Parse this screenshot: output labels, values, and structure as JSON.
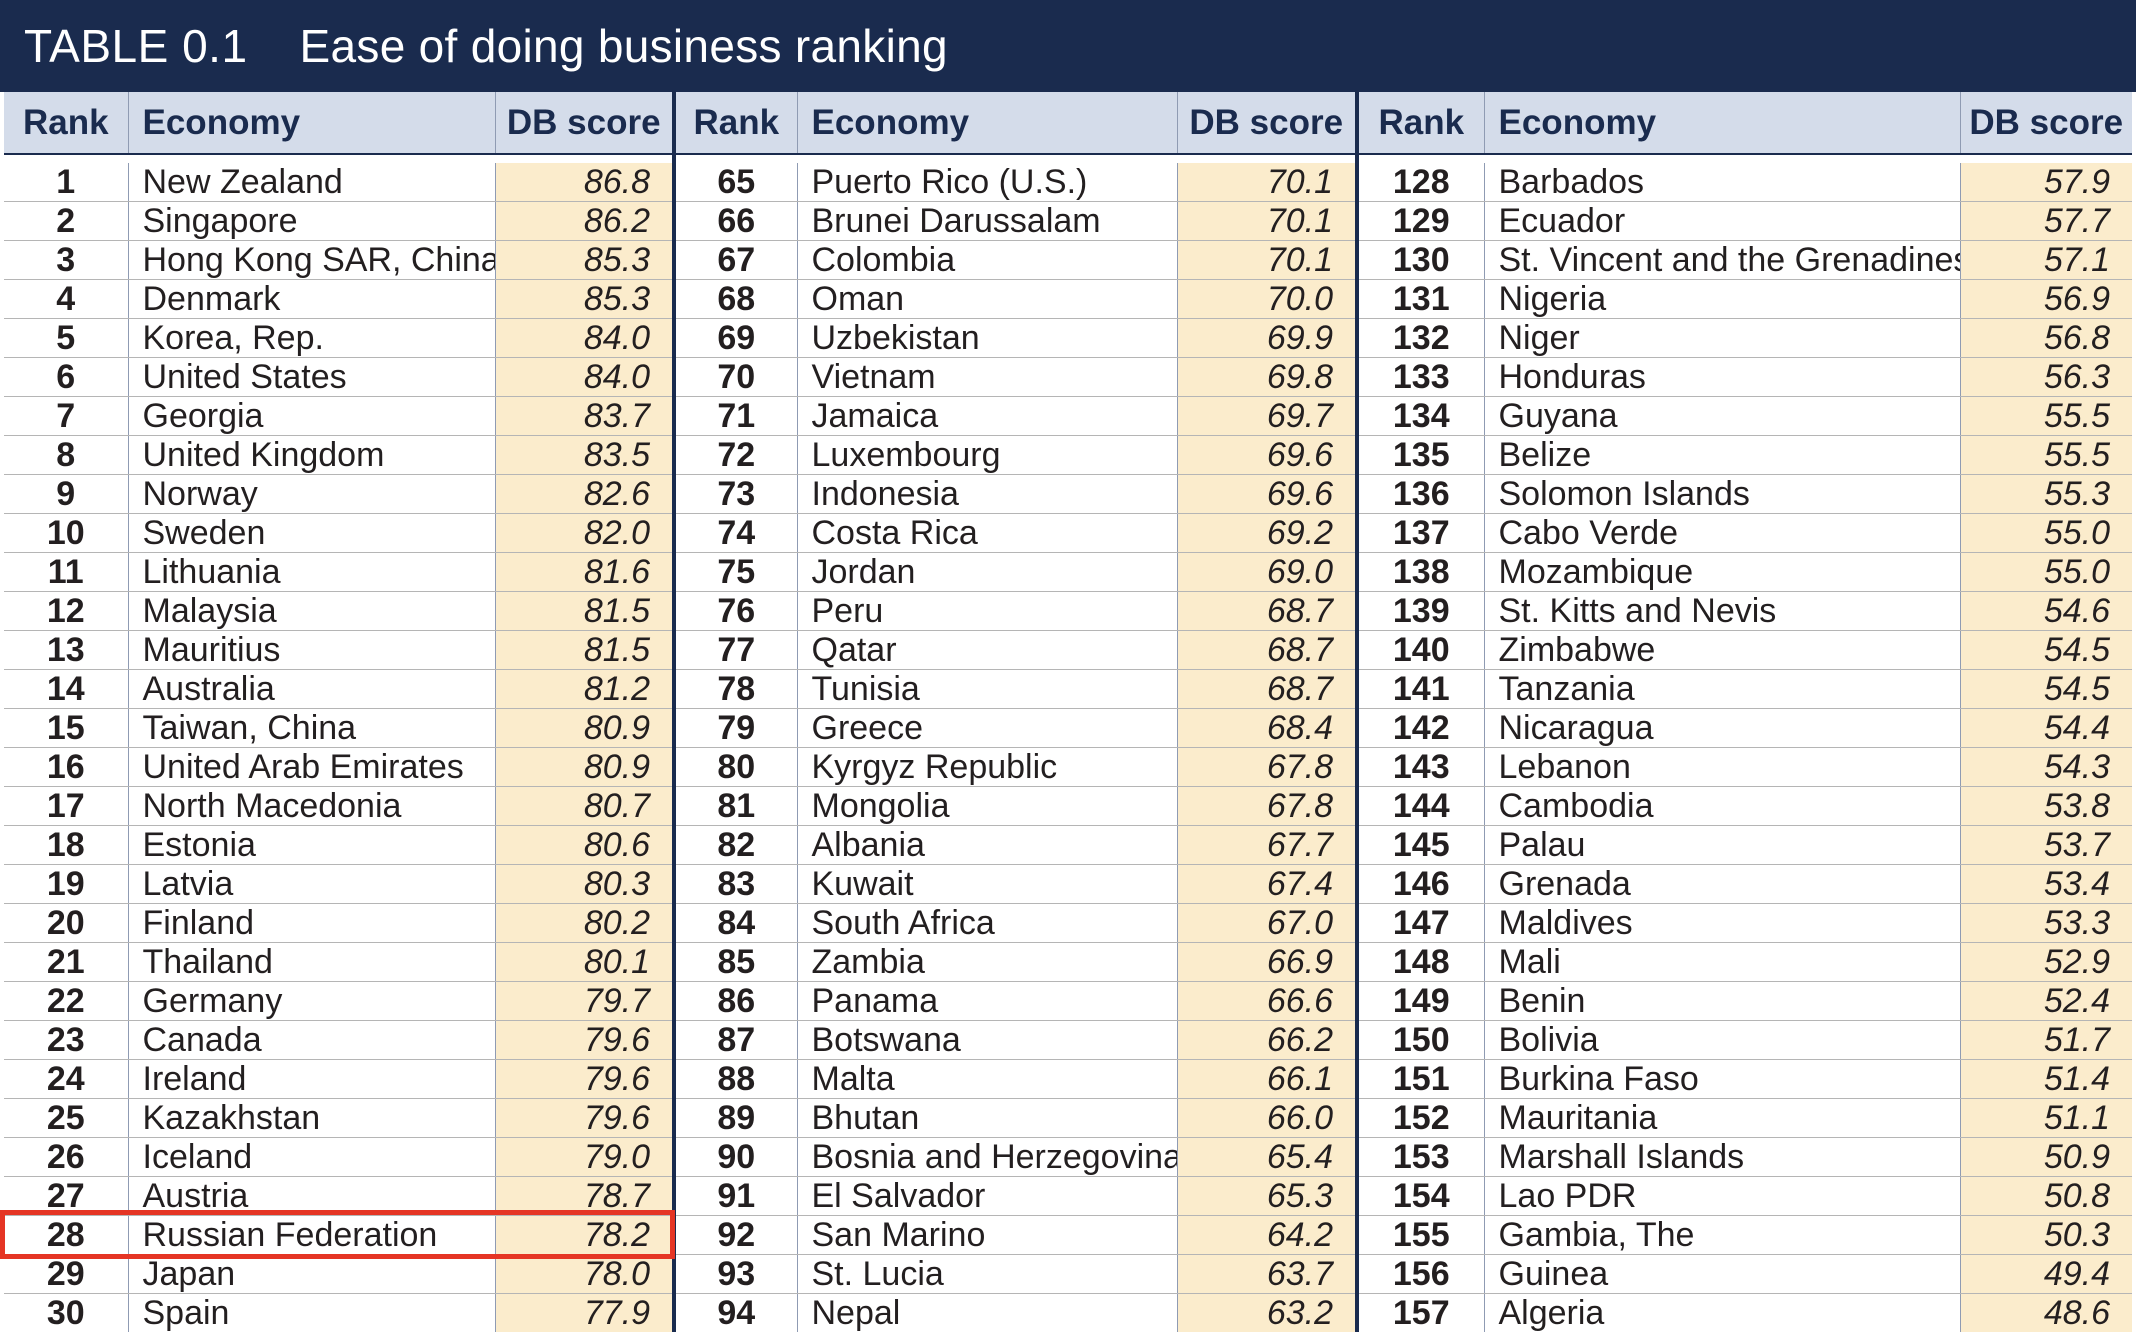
{
  "title": {
    "number": "TABLE 0.1",
    "text": "Ease of doing business ranking"
  },
  "columns": {
    "rank": "Rank",
    "economy": "Economy",
    "score": "DB score"
  },
  "highlight_color": "#e53524",
  "header_color": "#1a2b4e",
  "score_fill_color": "#fbeccc",
  "panels": [
    {
      "rows": [
        {
          "rank": "1",
          "economy": "New Zealand",
          "score": "86.8"
        },
        {
          "rank": "2",
          "economy": "Singapore",
          "score": "86.2"
        },
        {
          "rank": "3",
          "economy": "Hong Kong SAR, China",
          "score": "85.3"
        },
        {
          "rank": "4",
          "economy": "Denmark",
          "score": "85.3"
        },
        {
          "rank": "5",
          "economy": "Korea, Rep.",
          "score": "84.0"
        },
        {
          "rank": "6",
          "economy": "United States",
          "score": "84.0"
        },
        {
          "rank": "7",
          "economy": "Georgia",
          "score": "83.7"
        },
        {
          "rank": "8",
          "economy": "United Kingdom",
          "score": "83.5"
        },
        {
          "rank": "9",
          "economy": "Norway",
          "score": "82.6"
        },
        {
          "rank": "10",
          "economy": "Sweden",
          "score": "82.0"
        },
        {
          "rank": "11",
          "economy": "Lithuania",
          "score": "81.6"
        },
        {
          "rank": "12",
          "economy": "Malaysia",
          "score": "81.5"
        },
        {
          "rank": "13",
          "economy": "Mauritius",
          "score": "81.5"
        },
        {
          "rank": "14",
          "economy": "Australia",
          "score": "81.2"
        },
        {
          "rank": "15",
          "economy": "Taiwan, China",
          "score": "80.9"
        },
        {
          "rank": "16",
          "economy": "United Arab Emirates",
          "score": "80.9"
        },
        {
          "rank": "17",
          "economy": "North Macedonia",
          "score": "80.7"
        },
        {
          "rank": "18",
          "economy": "Estonia",
          "score": "80.6"
        },
        {
          "rank": "19",
          "economy": "Latvia",
          "score": "80.3"
        },
        {
          "rank": "20",
          "economy": "Finland",
          "score": "80.2"
        },
        {
          "rank": "21",
          "economy": "Thailand",
          "score": "80.1"
        },
        {
          "rank": "22",
          "economy": "Germany",
          "score": "79.7"
        },
        {
          "rank": "23",
          "economy": "Canada",
          "score": "79.6"
        },
        {
          "rank": "24",
          "economy": "Ireland",
          "score": "79.6"
        },
        {
          "rank": "25",
          "economy": "Kazakhstan",
          "score": "79.6"
        },
        {
          "rank": "26",
          "economy": "Iceland",
          "score": "79.0"
        },
        {
          "rank": "27",
          "economy": "Austria",
          "score": "78.7"
        },
        {
          "rank": "28",
          "economy": "Russian Federation",
          "score": "78.2",
          "highlighted": true
        },
        {
          "rank": "29",
          "economy": "Japan",
          "score": "78.0"
        },
        {
          "rank": "30",
          "economy": "Spain",
          "score": "77.9"
        }
      ]
    },
    {
      "rows": [
        {
          "rank": "65",
          "economy": "Puerto Rico (U.S.)",
          "score": "70.1"
        },
        {
          "rank": "66",
          "economy": "Brunei Darussalam",
          "score": "70.1"
        },
        {
          "rank": "67",
          "economy": "Colombia",
          "score": "70.1"
        },
        {
          "rank": "68",
          "economy": "Oman",
          "score": "70.0"
        },
        {
          "rank": "69",
          "economy": "Uzbekistan",
          "score": "69.9"
        },
        {
          "rank": "70",
          "economy": "Vietnam",
          "score": "69.8"
        },
        {
          "rank": "71",
          "economy": "Jamaica",
          "score": "69.7"
        },
        {
          "rank": "72",
          "economy": "Luxembourg",
          "score": "69.6"
        },
        {
          "rank": "73",
          "economy": "Indonesia",
          "score": "69.6"
        },
        {
          "rank": "74",
          "economy": "Costa Rica",
          "score": "69.2"
        },
        {
          "rank": "75",
          "economy": "Jordan",
          "score": "69.0"
        },
        {
          "rank": "76",
          "economy": "Peru",
          "score": "68.7"
        },
        {
          "rank": "77",
          "economy": "Qatar",
          "score": "68.7"
        },
        {
          "rank": "78",
          "economy": "Tunisia",
          "score": "68.7"
        },
        {
          "rank": "79",
          "economy": "Greece",
          "score": "68.4"
        },
        {
          "rank": "80",
          "economy": "Kyrgyz Republic",
          "score": "67.8"
        },
        {
          "rank": "81",
          "economy": "Mongolia",
          "score": "67.8"
        },
        {
          "rank": "82",
          "economy": "Albania",
          "score": "67.7"
        },
        {
          "rank": "83",
          "economy": "Kuwait",
          "score": "67.4"
        },
        {
          "rank": "84",
          "economy": "South Africa",
          "score": "67.0"
        },
        {
          "rank": "85",
          "economy": "Zambia",
          "score": "66.9"
        },
        {
          "rank": "86",
          "economy": "Panama",
          "score": "66.6"
        },
        {
          "rank": "87",
          "economy": "Botswana",
          "score": "66.2"
        },
        {
          "rank": "88",
          "economy": "Malta",
          "score": "66.1"
        },
        {
          "rank": "89",
          "economy": "Bhutan",
          "score": "66.0"
        },
        {
          "rank": "90",
          "economy": "Bosnia and Herzegovina",
          "score": "65.4"
        },
        {
          "rank": "91",
          "economy": "El Salvador",
          "score": "65.3"
        },
        {
          "rank": "92",
          "economy": "San Marino",
          "score": "64.2"
        },
        {
          "rank": "93",
          "economy": "St. Lucia",
          "score": "63.7"
        },
        {
          "rank": "94",
          "economy": "Nepal",
          "score": "63.2"
        }
      ]
    },
    {
      "rows": [
        {
          "rank": "128",
          "economy": "Barbados",
          "score": "57.9"
        },
        {
          "rank": "129",
          "economy": "Ecuador",
          "score": "57.7"
        },
        {
          "rank": "130",
          "economy": "St. Vincent and the Grenadines",
          "score": "57.1"
        },
        {
          "rank": "131",
          "economy": "Nigeria",
          "score": "56.9"
        },
        {
          "rank": "132",
          "economy": "Niger",
          "score": "56.8"
        },
        {
          "rank": "133",
          "economy": "Honduras",
          "score": "56.3"
        },
        {
          "rank": "134",
          "economy": "Guyana",
          "score": "55.5"
        },
        {
          "rank": "135",
          "economy": "Belize",
          "score": "55.5"
        },
        {
          "rank": "136",
          "economy": "Solomon Islands",
          "score": "55.3"
        },
        {
          "rank": "137",
          "economy": "Cabo Verde",
          "score": "55.0"
        },
        {
          "rank": "138",
          "economy": "Mozambique",
          "score": "55.0"
        },
        {
          "rank": "139",
          "economy": "St. Kitts and Nevis",
          "score": "54.6"
        },
        {
          "rank": "140",
          "economy": "Zimbabwe",
          "score": "54.5"
        },
        {
          "rank": "141",
          "economy": "Tanzania",
          "score": "54.5"
        },
        {
          "rank": "142",
          "economy": "Nicaragua",
          "score": "54.4"
        },
        {
          "rank": "143",
          "economy": "Lebanon",
          "score": "54.3"
        },
        {
          "rank": "144",
          "economy": "Cambodia",
          "score": "53.8"
        },
        {
          "rank": "145",
          "economy": "Palau",
          "score": "53.7"
        },
        {
          "rank": "146",
          "economy": "Grenada",
          "score": "53.4"
        },
        {
          "rank": "147",
          "economy": "Maldives",
          "score": "53.3"
        },
        {
          "rank": "148",
          "economy": "Mali",
          "score": "52.9"
        },
        {
          "rank": "149",
          "economy": "Benin",
          "score": "52.4"
        },
        {
          "rank": "150",
          "economy": "Bolivia",
          "score": "51.7"
        },
        {
          "rank": "151",
          "economy": "Burkina Faso",
          "score": "51.4"
        },
        {
          "rank": "152",
          "economy": "Mauritania",
          "score": "51.1"
        },
        {
          "rank": "153",
          "economy": "Marshall Islands",
          "score": "50.9"
        },
        {
          "rank": "154",
          "economy": "Lao PDR",
          "score": "50.8"
        },
        {
          "rank": "155",
          "economy": "Gambia, The",
          "score": "50.3"
        },
        {
          "rank": "156",
          "economy": "Guinea",
          "score": "49.4"
        },
        {
          "rank": "157",
          "economy": "Algeria",
          "score": "48.6"
        }
      ]
    }
  ]
}
